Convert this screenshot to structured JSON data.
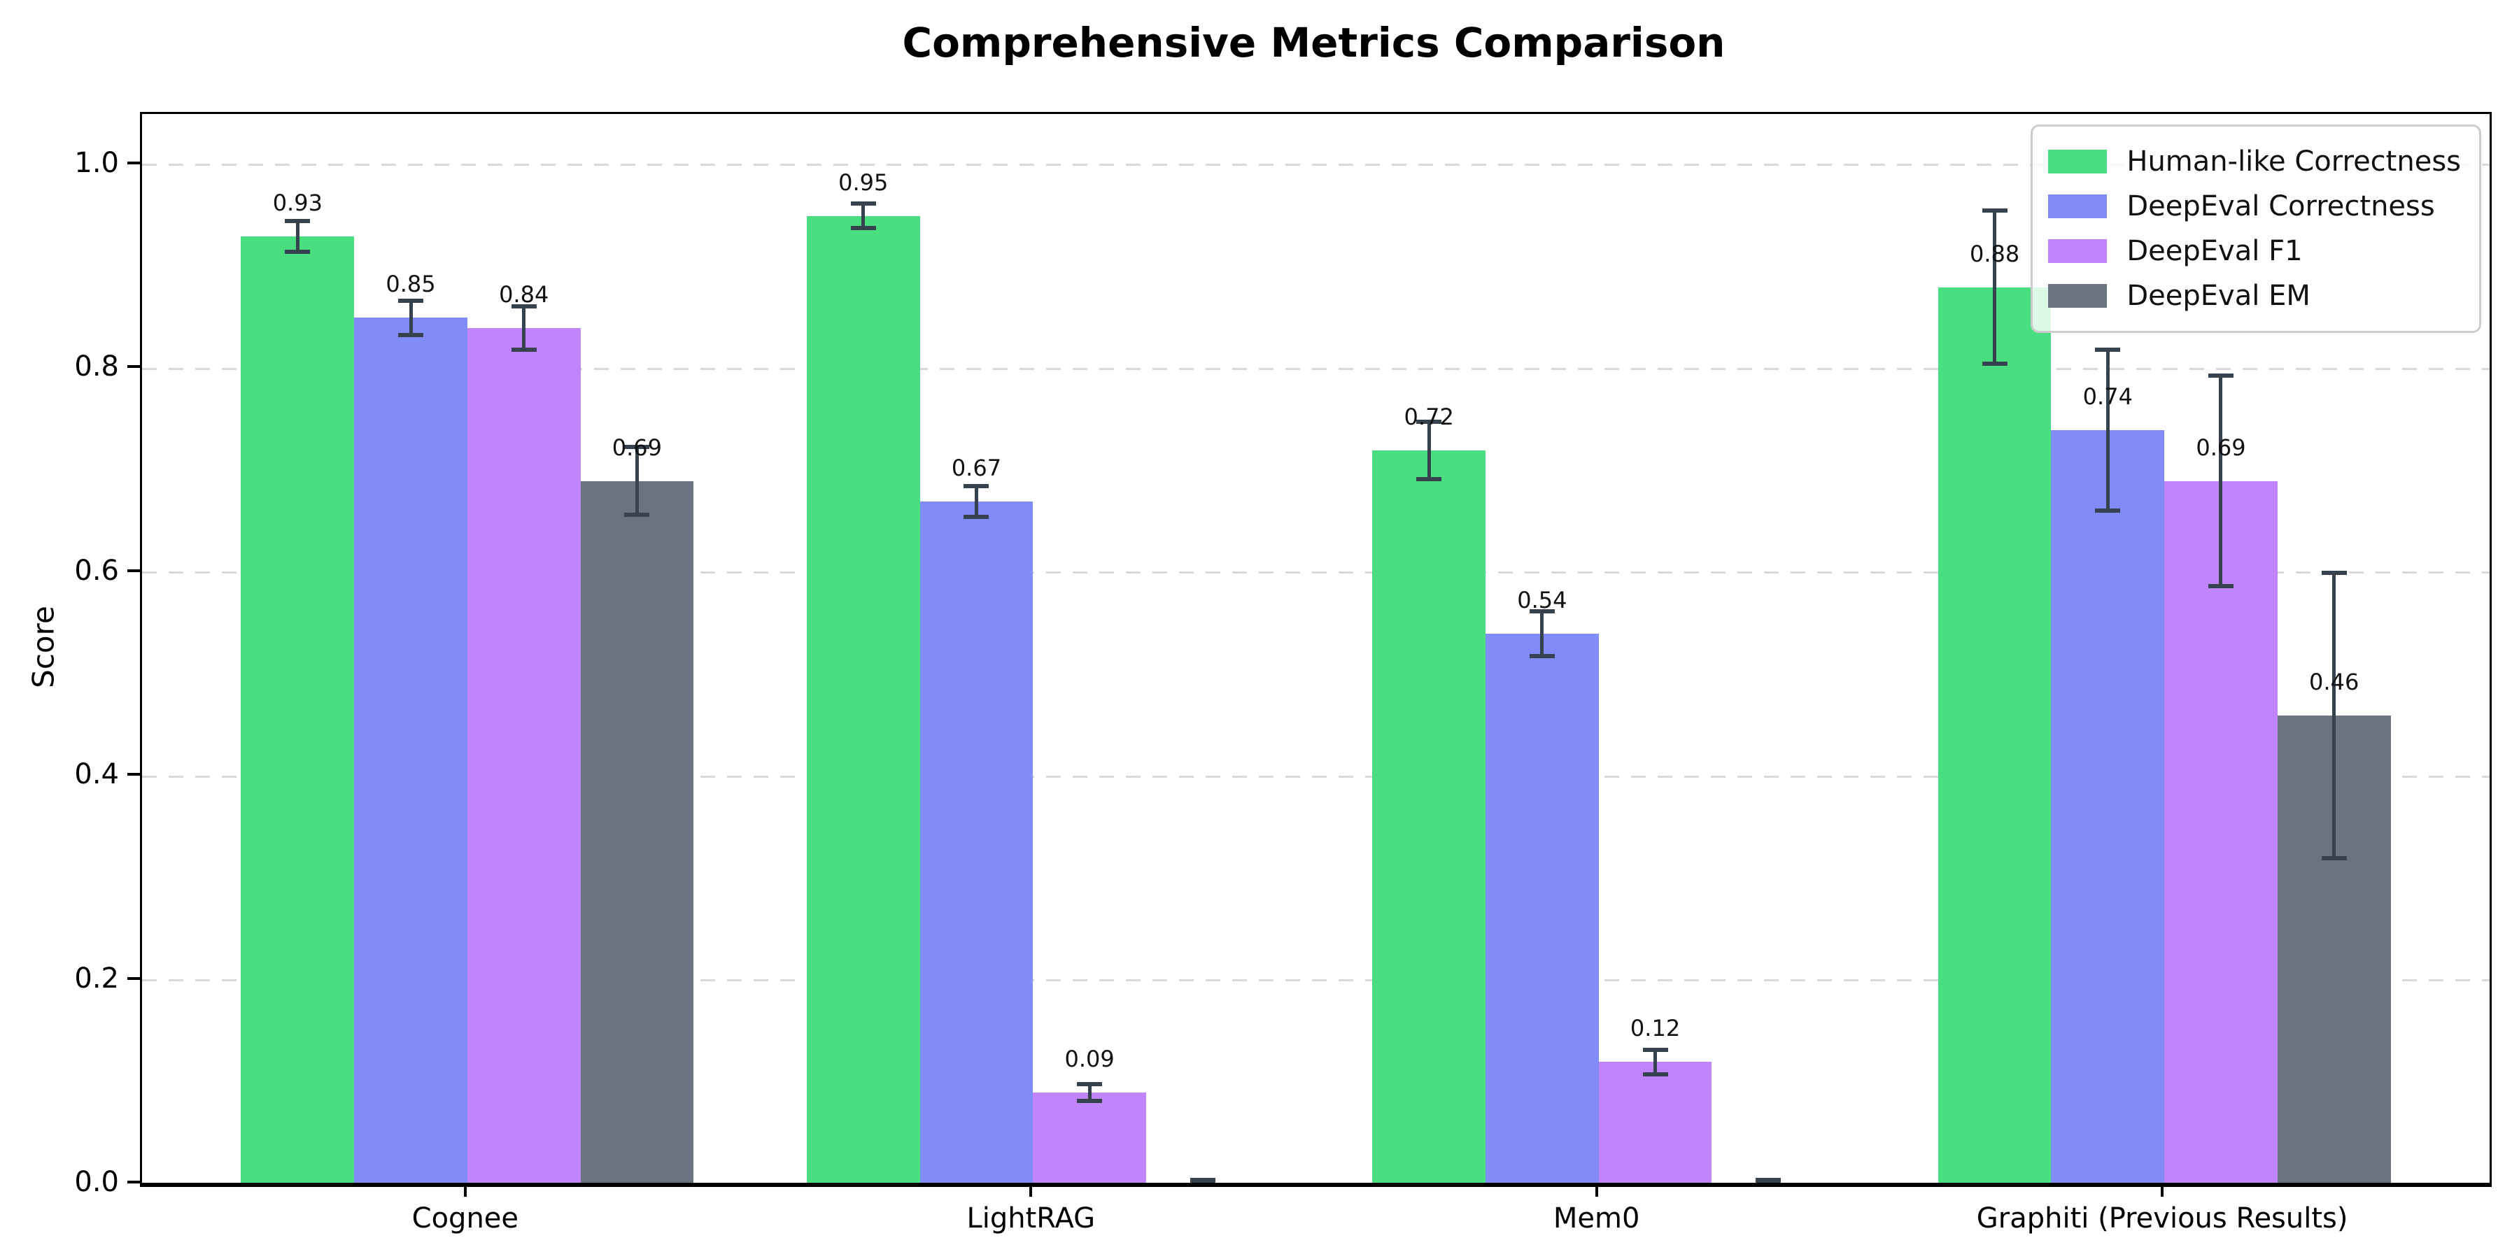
{
  "chart_data": {
    "type": "bar",
    "title": "Comprehensive Metrics Comparison",
    "xlabel": "",
    "ylabel": "Score",
    "categories": [
      "Cognee",
      "LightRAG",
      "Mem0",
      "Graphiti (Previous Results)"
    ],
    "series": [
      {
        "name": "Human-like Correctness",
        "color": "#4ade80",
        "values": [
          0.93,
          0.95,
          0.72,
          0.88
        ],
        "errors": [
          0.015,
          0.012,
          0.028,
          0.075
        ],
        "labels": [
          "0.93",
          "0.95",
          "0.72",
          "0.88"
        ]
      },
      {
        "name": "DeepEval Correctness",
        "color": "#818cf8",
        "values": [
          0.85,
          0.67,
          0.54,
          0.74
        ],
        "errors": [
          0.017,
          0.015,
          0.022,
          0.079
        ],
        "labels": [
          "0.85",
          "0.67",
          "0.54",
          "0.74"
        ]
      },
      {
        "name": "DeepEval F1",
        "color": "#c084fc",
        "values": [
          0.84,
          0.09,
          0.12,
          0.69
        ],
        "errors": [
          0.021,
          0.008,
          0.012,
          0.103
        ],
        "labels": [
          "0.84",
          "0.09",
          "0.12",
          "0.69"
        ]
      },
      {
        "name": "DeepEval EM",
        "color": "#6b7280",
        "values": [
          0.69,
          0.0,
          0.0,
          0.46
        ],
        "errors": [
          0.033,
          0.004,
          0.004,
          0.14
        ],
        "labels": [
          "0.69",
          "",
          "",
          "0.46"
        ]
      }
    ],
    "yticks": [
      {
        "value": 0.0,
        "label": "0.0"
      },
      {
        "value": 0.2,
        "label": "0.2"
      },
      {
        "value": 0.4,
        "label": "0.4"
      },
      {
        "value": 0.6,
        "label": "0.6"
      },
      {
        "value": 0.8,
        "label": "0.8"
      },
      {
        "value": 1.0,
        "label": "1.0"
      }
    ],
    "ylim": [
      0,
      1.05
    ],
    "grid": true,
    "grid_style": "dashed",
    "legend_position": "upper right",
    "error_bar_color": "#37424f"
  }
}
